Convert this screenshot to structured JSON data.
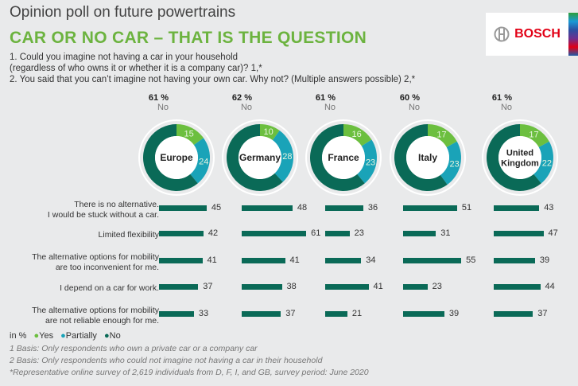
{
  "header": {
    "supertitle": "Opinion poll on future powertrains",
    "title": "CAR OR NO CAR – THAT IS THE QUESTION",
    "q1a": "1. Could you imagine not having a car in your household",
    "q1b": "(regardless of who owns it or whether it is a company car)? 1,*",
    "q2": "2. You said that you can’t imagine not having your own car. Why not? (Multiple answers possible) 2,*"
  },
  "logo": {
    "text": "BOSCH",
    "icon": "bosch-armature-icon"
  },
  "colors": {
    "yes": "#6cbf3f",
    "partially": "#1aa3b8",
    "no": "#0a6a57"
  },
  "chart_data": [
    {
      "type": "pie",
      "title": "Could you imagine not having a car in your household?",
      "categories": [
        "Yes",
        "Partially",
        "No"
      ],
      "series": [
        {
          "name": "Europe",
          "values": [
            15,
            24,
            61
          ],
          "headline": "61 %",
          "headline_label": "No"
        },
        {
          "name": "Germany",
          "values": [
            10,
            28,
            62
          ],
          "headline": "62 %",
          "headline_label": "No"
        },
        {
          "name": "France",
          "values": [
            16,
            23,
            61
          ],
          "headline": "61 %",
          "headline_label": "No"
        },
        {
          "name": "Italy",
          "values": [
            17,
            23,
            60
          ],
          "headline": "60 %",
          "headline_label": "No"
        },
        {
          "name": "United Kingdom",
          "values": [
            17,
            22,
            61
          ],
          "headline": "61 %",
          "headline_label": "No"
        }
      ]
    },
    {
      "type": "bar",
      "orientation": "horizontal",
      "categories": [
        "There is no alternative.\nI would be stuck without a car.",
        "Limited flexibility",
        "The alternative options for mobility\nare too inconvenient for me.",
        "I depend on a car for work.",
        "The alternative options for mobility\nare not reliable  enough for me."
      ],
      "series": [
        {
          "name": "Europe",
          "values": [
            45,
            42,
            41,
            37,
            33
          ]
        },
        {
          "name": "Germany",
          "values": [
            48,
            61,
            41,
            38,
            37
          ]
        },
        {
          "name": "France",
          "values": [
            36,
            23,
            34,
            41,
            21
          ]
        },
        {
          "name": "Italy",
          "values": [
            51,
            31,
            55,
            23,
            39
          ]
        },
        {
          "name": "United Kingdom",
          "values": [
            43,
            47,
            39,
            44,
            37
          ]
        }
      ]
    }
  ],
  "legend": {
    "unit": "in %",
    "items": [
      "Yes",
      "Partially",
      "No"
    ]
  },
  "footnotes": [
    "1 Basis: Only respondents who own a private car or a company car",
    "2 Basis: Only respondents who could not imagine not having a car in their household",
    "*Representative online survey of 2,619 individuals from D, F, I, and GB, survey period: June 2020"
  ]
}
